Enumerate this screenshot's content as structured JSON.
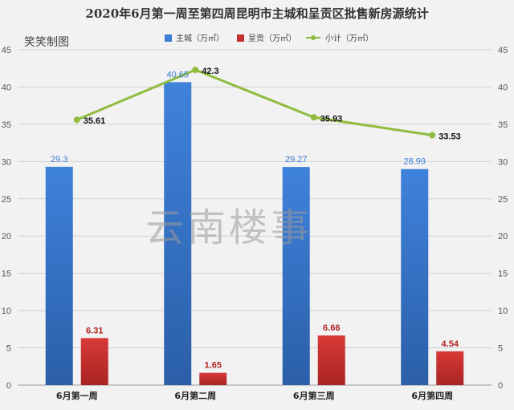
{
  "chart_data": {
    "type": "bar",
    "title": "2020年6月第一周至第四周昆明市主城和呈贡区批售新房源统计",
    "categories": [
      "6月第一周",
      "6月第二周",
      "6月第三周",
      "6月第四周"
    ],
    "series": [
      {
        "name": "主城（万㎡）",
        "type": "bar",
        "color": "#3a7bd5",
        "values": [
          29.3,
          40.65,
          29.27,
          28.99
        ]
      },
      {
        "name": "呈贡（万㎡）",
        "type": "bar",
        "color": "#c0302f",
        "values": [
          6.31,
          1.65,
          6.66,
          4.54
        ]
      },
      {
        "name": "小计（万㎡）",
        "type": "line",
        "color": "#8fbc3f",
        "values": [
          35.61,
          42.3,
          35.93,
          33.53
        ]
      }
    ],
    "ylim": [
      0,
      45
    ],
    "yticks": [
      0,
      5,
      10,
      15,
      20,
      25,
      30,
      35,
      40,
      45
    ],
    "grid": true,
    "legend": "top-center",
    "secondary_axis": true
  },
  "credit": "笑笑制图",
  "watermark": "云南楼事"
}
